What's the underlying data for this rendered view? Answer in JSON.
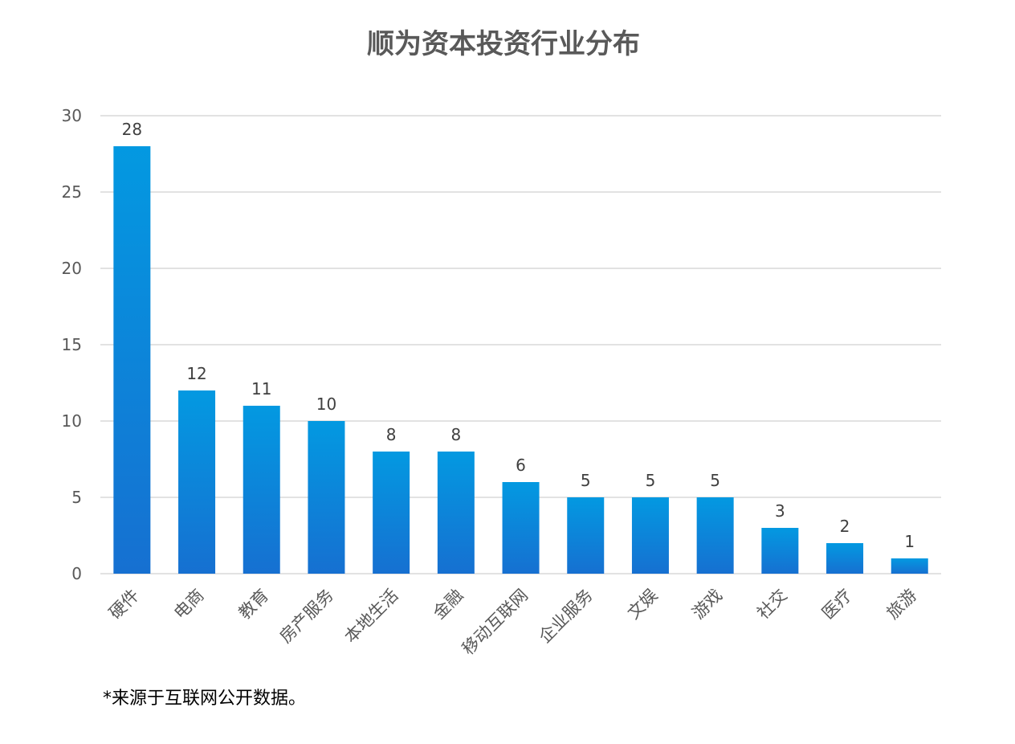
{
  "chart_data": {
    "type": "bar",
    "title": "顺为资本投资行业分布",
    "categories": [
      "硬件",
      "电商",
      "教育",
      "房产服务",
      "本地生活",
      "金融",
      "移动互联网",
      "企业服务",
      "文娱",
      "游戏",
      "社交",
      "医疗",
      "旅游"
    ],
    "values": [
      28,
      12,
      11,
      10,
      8,
      8,
      6,
      5,
      5,
      5,
      3,
      2,
      1
    ],
    "ylim": [
      0,
      30
    ],
    "yticks": [
      0,
      5,
      10,
      15,
      20,
      25,
      30
    ],
    "xlabel": "",
    "ylabel": "",
    "grid": true,
    "legend": "none",
    "colors": {
      "bar_top": "#0399E1",
      "bar_bottom": "#1670D1",
      "grid": "#D9D9D9"
    }
  },
  "footnote": "*来源于互联网公开数据。"
}
